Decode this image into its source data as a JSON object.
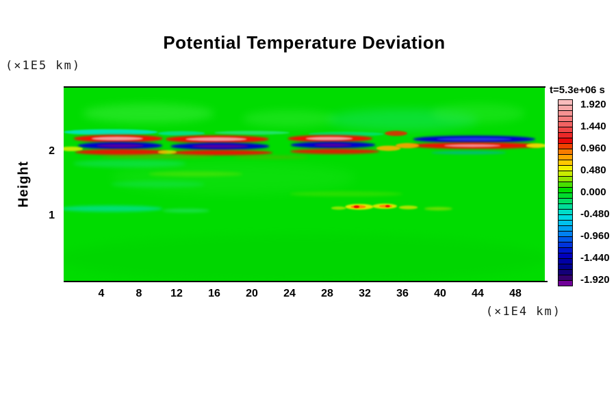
{
  "title": "Potential Temperature Deviation",
  "labels": {
    "y_unit": "(×1E5 km)",
    "x_unit": "(×1E4 km)",
    "y_axis": "Height",
    "time": "t=5.3e+06 s"
  },
  "colorbar": {
    "tick_labels": [
      "1.920",
      "1.440",
      "0.960",
      "0.480",
      "0.000",
      "-0.480",
      "-0.960",
      "-1.440",
      "-1.920"
    ],
    "colors": [
      "#f9bcbc",
      "#f7a8a8",
      "#f49292",
      "#f27c7c",
      "#f06262",
      "#ee4646",
      "#ec2828",
      "#ea0a0a",
      "#f04000",
      "#f87c00",
      "#ffa400",
      "#ffc800",
      "#f0f000",
      "#c8ec00",
      "#90e400",
      "#48e000",
      "#00dc00",
      "#00dc2c",
      "#00dc64",
      "#00dc98",
      "#00dcc8",
      "#00d8e4",
      "#00c0ec",
      "#00a0f0",
      "#0080f0",
      "#0058e8",
      "#0034dc",
      "#0014cc",
      "#0000bc",
      "#0000a4",
      "#00008c",
      "#140078",
      "#34006c",
      "#700098"
    ]
  },
  "chart_data": {
    "type": "heatmap",
    "title": "Potential Temperature Deviation",
    "xlabel": "(×1E4 km)",
    "ylabel": "Height (×1E5 km)",
    "time_annotation": "t=5.3e+06 s",
    "x_range": [
      0,
      51.1
    ],
    "y_range": [
      0,
      3.0
    ],
    "x_ticks": [
      4,
      8,
      12,
      16,
      20,
      24,
      28,
      32,
      36,
      40,
      44,
      48
    ],
    "y_ticks": [
      2,
      1
    ],
    "colorbar_scale": {
      "min": -2.04,
      "max": 2.04,
      "step": 0.12,
      "labeled_values": [
        1.92,
        1.44,
        0.96,
        0.48,
        0.0,
        -0.48,
        -0.96,
        -1.44,
        -1.92
      ]
    },
    "background_value": 0.0,
    "background_color": "#00dc00",
    "features": [
      {
        "n": "light-green-patch",
        "x": 9,
        "y": 2.6,
        "w": 14,
        "h": 0.3,
        "c": "#3cec3c",
        "b": 6,
        "o": 0.55
      },
      {
        "n": "light-green-patch",
        "x": 24,
        "y": 2.52,
        "w": 10,
        "h": 0.26,
        "c": "#3cec3c",
        "b": 6,
        "o": 0.4
      },
      {
        "n": "teal-green-patch",
        "x": 36,
        "y": 2.5,
        "w": 16,
        "h": 0.34,
        "c": "#28e8a8",
        "b": 7,
        "o": 0.3
      },
      {
        "n": "light-green-patch",
        "x": 44,
        "y": 2.6,
        "w": 10,
        "h": 0.3,
        "c": "#3cec3c",
        "b": 6,
        "o": 0.35
      },
      {
        "n": "light-green-patch",
        "x": 18,
        "y": 1.6,
        "w": 26,
        "h": 0.5,
        "c": "#2ce82c",
        "b": 8,
        "o": 0.25
      },
      {
        "n": "teal-streak",
        "x": 7,
        "y": 1.82,
        "w": 12,
        "h": 0.12,
        "c": "#20e6a0",
        "b": 3,
        "o": 0.35
      },
      {
        "n": "yellow-green-streak",
        "x": 14,
        "y": 1.66,
        "w": 10,
        "h": 0.08,
        "c": "#a0e800",
        "b": 2,
        "o": 0.3
      },
      {
        "n": "yellow-green-streak",
        "x": 30,
        "y": 1.35,
        "w": 12,
        "h": 0.08,
        "c": "#a0e800",
        "b": 2,
        "o": 0.25
      },
      {
        "n": "teal-streak",
        "x": 10,
        "y": 1.5,
        "w": 10,
        "h": 0.1,
        "c": "#20e6a0",
        "b": 3,
        "o": 0.25
      },
      {
        "n": "dark-green-band",
        "x": 25.5,
        "y": 0.35,
        "w": 52,
        "h": 0.75,
        "c": "#00d000",
        "b": 6,
        "o": 0.45
      },
      {
        "n": "cyan-streak",
        "x": 5,
        "y": 2.31,
        "w": 10,
        "h": 0.09,
        "c": "#00e6d4",
        "b": 1,
        "o": 0.85
      },
      {
        "n": "cyan-streak",
        "x": 12.5,
        "y": 2.29,
        "w": 5,
        "h": 0.07,
        "c": "#00e6d4",
        "b": 1,
        "o": 0.6
      },
      {
        "n": "cyan-streak",
        "x": 20,
        "y": 2.3,
        "w": 8,
        "h": 0.06,
        "c": "#40ead0",
        "b": 1,
        "o": 0.5
      },
      {
        "n": "cyan-streak",
        "x": 30,
        "y": 2.28,
        "w": 8,
        "h": 0.07,
        "c": "#00e6d4",
        "b": 1,
        "o": 0.45
      },
      {
        "n": "wave-red-top",
        "x": 5.8,
        "y": 2.21,
        "w": 9.5,
        "h": 0.12,
        "c": "#ee1000",
        "b": 1.5,
        "o": 1
      },
      {
        "n": "wave-pink-core",
        "x": 5.7,
        "y": 2.21,
        "w": 5.5,
        "h": 0.06,
        "c": "#f49c9c",
        "b": 1,
        "o": 1
      },
      {
        "n": "wave-blue",
        "x": 6,
        "y": 2.1,
        "w": 9,
        "h": 0.11,
        "c": "#0000cc",
        "b": 1.5,
        "o": 1
      },
      {
        "n": "wave-purple-core",
        "x": 6,
        "y": 2.1,
        "w": 5,
        "h": 0.05,
        "c": "#5000a0",
        "b": 1,
        "o": 1
      },
      {
        "n": "wave-red-bottom",
        "x": 6.2,
        "y": 2.0,
        "w": 10,
        "h": 0.09,
        "c": "#ee1000",
        "b": 1.5,
        "o": 0.95
      },
      {
        "n": "yellow-tail",
        "x": 0.8,
        "y": 2.05,
        "w": 2.5,
        "h": 0.07,
        "c": "#f0f000",
        "b": 1,
        "o": 0.8
      },
      {
        "n": "wave-red-top",
        "x": 16.3,
        "y": 2.2,
        "w": 11,
        "h": 0.12,
        "c": "#ee1000",
        "b": 1.5,
        "o": 1
      },
      {
        "n": "wave-pink-core",
        "x": 16.2,
        "y": 2.2,
        "w": 6.5,
        "h": 0.06,
        "c": "#f49c9c",
        "b": 1,
        "o": 1
      },
      {
        "n": "wave-blue",
        "x": 16.6,
        "y": 2.09,
        "w": 10.5,
        "h": 0.11,
        "c": "#0000cc",
        "b": 1.5,
        "o": 1
      },
      {
        "n": "wave-purple-core",
        "x": 16.6,
        "y": 2.09,
        "w": 6,
        "h": 0.05,
        "c": "#5000a0",
        "b": 1,
        "o": 1
      },
      {
        "n": "wave-red-bottom",
        "x": 16.7,
        "y": 1.99,
        "w": 11,
        "h": 0.08,
        "c": "#ee1000",
        "b": 1.5,
        "o": 0.95
      },
      {
        "n": "yellow-tail",
        "x": 11,
        "y": 2.0,
        "w": 2,
        "h": 0.06,
        "c": "#f0f000",
        "b": 1,
        "o": 0.7
      },
      {
        "n": "wave-red-top",
        "x": 28.3,
        "y": 2.21,
        "w": 9,
        "h": 0.11,
        "c": "#ee1000",
        "b": 1.5,
        "o": 1
      },
      {
        "n": "wave-pink-core",
        "x": 28.2,
        "y": 2.21,
        "w": 5,
        "h": 0.055,
        "c": "#f49c9c",
        "b": 1,
        "o": 1
      },
      {
        "n": "wave-blue",
        "x": 28.6,
        "y": 2.11,
        "w": 9,
        "h": 0.1,
        "c": "#0000cc",
        "b": 1.5,
        "o": 1
      },
      {
        "n": "wave-purple-core",
        "x": 28.6,
        "y": 2.11,
        "w": 4,
        "h": 0.045,
        "c": "#5000a0",
        "b": 1,
        "o": 1
      },
      {
        "n": "wave-red-bottom",
        "x": 28.8,
        "y": 2.01,
        "w": 9.5,
        "h": 0.08,
        "c": "#ee1000",
        "b": 1.5,
        "o": 0.9
      },
      {
        "n": "orange-tail",
        "x": 34.5,
        "y": 2.06,
        "w": 2.6,
        "h": 0.08,
        "c": "#ffb000",
        "b": 1,
        "o": 0.9
      },
      {
        "n": "red-spur",
        "x": 35.3,
        "y": 2.29,
        "w": 2.4,
        "h": 0.08,
        "c": "#ee2000",
        "b": 1,
        "o": 0.85
      },
      {
        "n": "wave-blue",
        "x": 43.6,
        "y": 2.2,
        "w": 13,
        "h": 0.11,
        "c": "#0000cc",
        "b": 1.5,
        "o": 1
      },
      {
        "n": "wave-blue-core",
        "x": 43.6,
        "y": 2.2,
        "w": 8,
        "h": 0.05,
        "c": "#2038e0",
        "b": 1,
        "o": 1
      },
      {
        "n": "wave-red",
        "x": 43.8,
        "y": 2.1,
        "w": 14,
        "h": 0.1,
        "c": "#ee1000",
        "b": 1.5,
        "o": 1
      },
      {
        "n": "wave-pink-core",
        "x": 43.4,
        "y": 2.1,
        "w": 6,
        "h": 0.045,
        "c": "#f49c9c",
        "b": 1,
        "o": 0.9
      },
      {
        "n": "orange-tail",
        "x": 36.5,
        "y": 2.1,
        "w": 2.5,
        "h": 0.08,
        "c": "#ffa000",
        "b": 1,
        "o": 0.9
      },
      {
        "n": "yellow-tail",
        "x": 50.2,
        "y": 2.1,
        "w": 2.2,
        "h": 0.07,
        "c": "#f0f000",
        "b": 1,
        "o": 0.85
      },
      {
        "n": "blue-streak",
        "x": 43,
        "y": 1.99,
        "w": 8,
        "h": 0.05,
        "c": "#00a0e8",
        "b": 1.5,
        "o": 0.5
      },
      {
        "n": "faint-orange-streak",
        "x": 10,
        "y": 1.93,
        "w": 12,
        "h": 0.06,
        "c": "#e87000",
        "b": 2,
        "o": 0.3
      },
      {
        "n": "faint-orange-streak",
        "x": 22,
        "y": 1.92,
        "w": 8,
        "h": 0.05,
        "c": "#e87000",
        "b": 2,
        "o": 0.25
      },
      {
        "n": "cyan-band",
        "x": 5,
        "y": 1.12,
        "w": 11,
        "h": 0.1,
        "c": "#00e2c4",
        "b": 2,
        "o": 0.6
      },
      {
        "n": "cyan-band",
        "x": 13,
        "y": 1.09,
        "w": 5,
        "h": 0.06,
        "c": "#40e8b4",
        "b": 2,
        "o": 0.4
      },
      {
        "n": "yellow-blob",
        "x": 29.2,
        "y": 1.13,
        "w": 1.6,
        "h": 0.05,
        "c": "#e8ec00",
        "b": 1,
        "o": 0.6
      },
      {
        "n": "yellow-blob",
        "x": 31.4,
        "y": 1.15,
        "w": 3,
        "h": 0.09,
        "c": "#f0e800",
        "b": 1,
        "o": 0.95
      },
      {
        "n": "orange-core",
        "x": 31.3,
        "y": 1.15,
        "w": 1.6,
        "h": 0.05,
        "c": "#ff8000",
        "b": 0.5,
        "o": 0.9
      },
      {
        "n": "red-speck",
        "x": 31.1,
        "y": 1.15,
        "w": 0.6,
        "h": 0.04,
        "c": "#ee0000",
        "b": 0.5,
        "o": 0.9
      },
      {
        "n": "yellow-blob",
        "x": 34.1,
        "y": 1.16,
        "w": 2.6,
        "h": 0.08,
        "c": "#f0e800",
        "b": 1,
        "o": 0.9
      },
      {
        "n": "orange-core",
        "x": 34.2,
        "y": 1.16,
        "w": 1.4,
        "h": 0.045,
        "c": "#ff8000",
        "b": 0.5,
        "o": 0.85
      },
      {
        "n": "red-speck",
        "x": 34.4,
        "y": 1.16,
        "w": 0.5,
        "h": 0.035,
        "c": "#ee0000",
        "b": 0.5,
        "o": 0.9
      },
      {
        "n": "yellow-blob",
        "x": 36.6,
        "y": 1.14,
        "w": 2,
        "h": 0.06,
        "c": "#e8e400",
        "b": 1,
        "o": 0.75
      },
      {
        "n": "yellow-streak",
        "x": 39.8,
        "y": 1.12,
        "w": 3,
        "h": 0.05,
        "c": "#c8e400",
        "b": 1.5,
        "o": 0.55
      }
    ]
  }
}
